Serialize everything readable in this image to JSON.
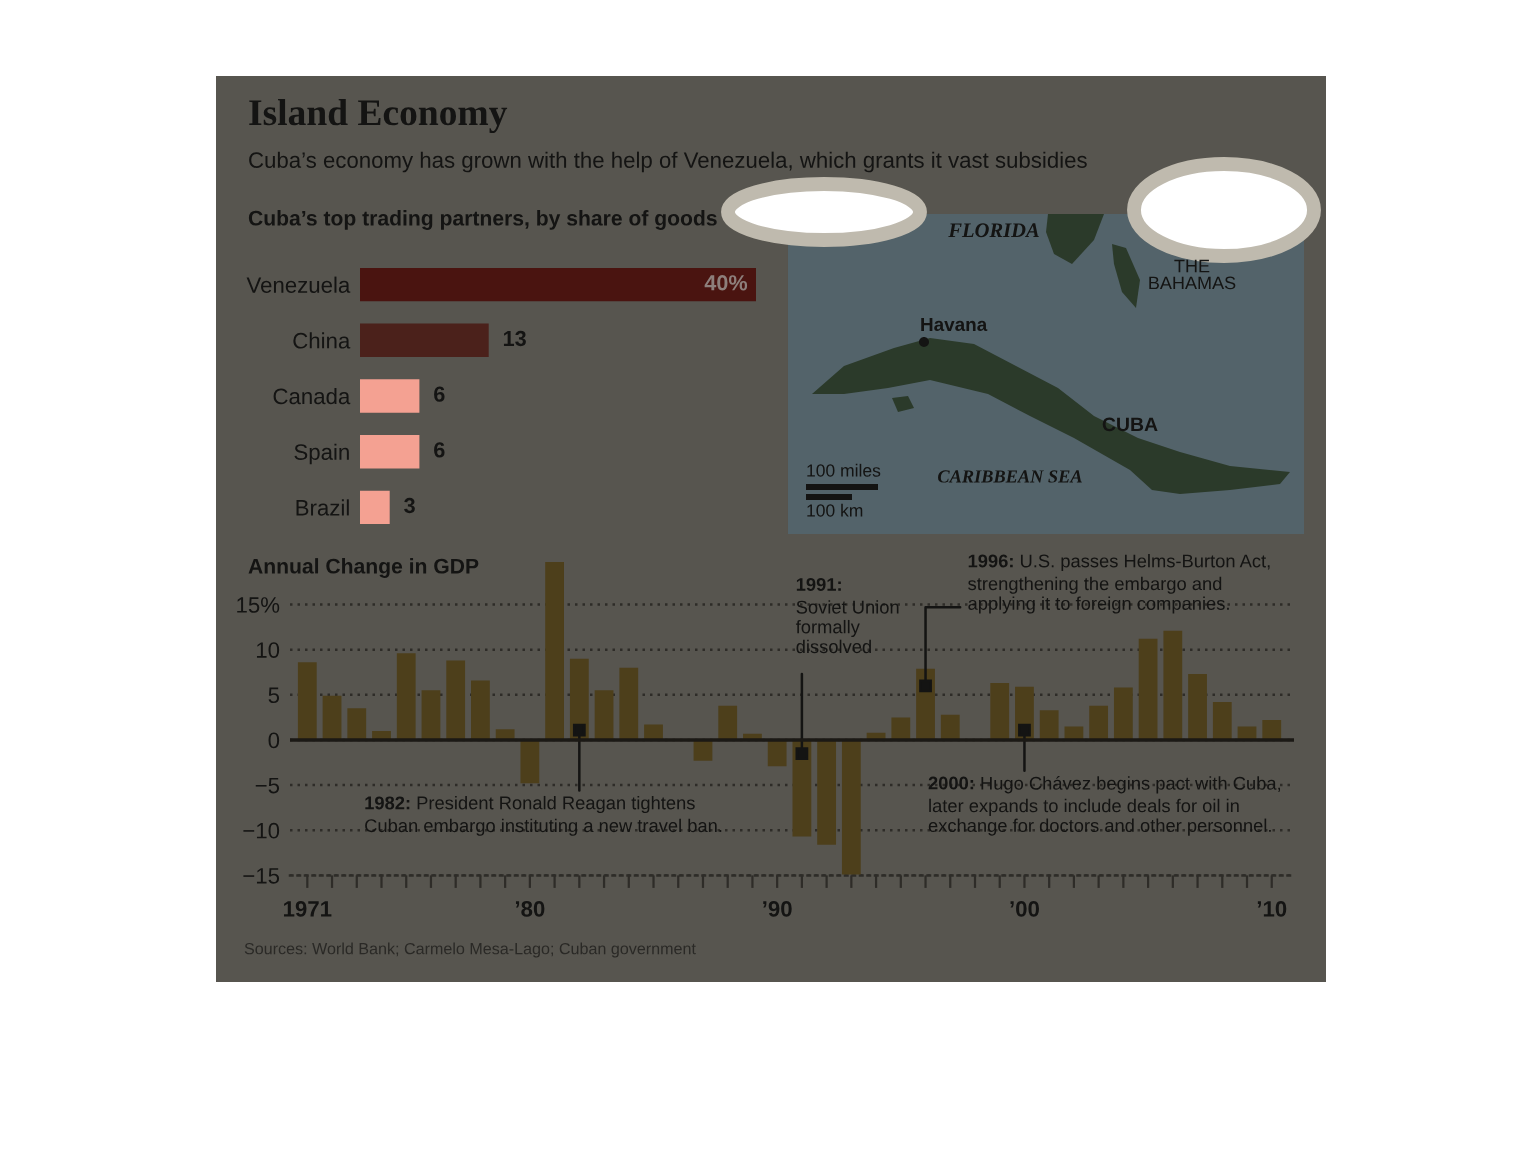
{
  "chart_data": [
    {
      "type": "other",
      "title": "Island Economy",
      "subtitle": "Cuba’s economy has grown with the help of Venezuela, which grants it vast subsidies"
    },
    {
      "type": "bar",
      "orientation": "horizontal",
      "title": "Cuba’s top trading partners, by share of goods",
      "categories": [
        "Venezuela",
        "China",
        "Canada",
        "Spain",
        "Brazil"
      ],
      "values": [
        40,
        13,
        6,
        6,
        3
      ],
      "colors": [
        "#4a1410",
        "#4b211b",
        "#f4a192",
        "#f4a192",
        "#f4a192"
      ],
      "value_labels": [
        "40%",
        "13",
        "6",
        "6",
        "3"
      ]
    },
    {
      "type": "other",
      "annotations": [
        "FLORIDA",
        "THE\nBAHAMAS",
        "Havana",
        "CUBA",
        "CARIBBEAN SEA",
        "100 miles",
        "100 km"
      ]
    },
    {
      "type": "bar",
      "title": "Annual Change in GDP",
      "x": [
        1971,
        1972,
        1973,
        1974,
        1975,
        1976,
        1977,
        1978,
        1979,
        1980,
        1981,
        1982,
        1983,
        1984,
        1985,
        1986,
        1987,
        1988,
        1989,
        1990,
        1991,
        1992,
        1993,
        1994,
        1995,
        1996,
        1997,
        1998,
        1999,
        2000,
        2001,
        2002,
        2003,
        2004,
        2005,
        2006,
        2007,
        2008,
        2009,
        2010
      ],
      "values": [
        8.6,
        4.9,
        3.5,
        1.0,
        9.6,
        5.5,
        8.8,
        6.6,
        1.2,
        -4.8,
        19.7,
        9.0,
        5.5,
        8.0,
        1.7,
        null,
        -2.3,
        3.8,
        0.7,
        -2.9,
        -10.7,
        -11.6,
        -14.9,
        0.8,
        2.5,
        7.9,
        2.8,
        null,
        6.3,
        5.9,
        3.3,
        1.5,
        3.8,
        5.8,
        11.2,
        12.1,
        7.3,
        4.2,
        1.5,
        2.2
      ],
      "color": "#4d3f1b",
      "xlim": [
        1970.3,
        2010.9
      ],
      "ylim": [
        -15,
        20
      ],
      "xticks": [
        {
          "value": 1971,
          "label": "1971"
        },
        {
          "value": 1972,
          "label": null
        },
        {
          "value": 1973,
          "label": null
        },
        {
          "value": 1974,
          "label": null
        },
        {
          "value": 1975,
          "label": null
        },
        {
          "value": 1976,
          "label": null
        },
        {
          "value": 1977,
          "label": null
        },
        {
          "value": 1978,
          "label": null
        },
        {
          "value": 1979,
          "label": null
        },
        {
          "value": 1980,
          "label": "’80"
        },
        {
          "value": 1981,
          "label": null
        },
        {
          "value": 1982,
          "label": null
        },
        {
          "value": 1983,
          "label": null
        },
        {
          "value": 1984,
          "label": null
        },
        {
          "value": 1985,
          "label": null
        },
        {
          "value": 1986,
          "label": null
        },
        {
          "value": 1987,
          "label": null
        },
        {
          "value": 1988,
          "label": null
        },
        {
          "value": 1989,
          "label": null
        },
        {
          "value": 1990,
          "label": "’90"
        },
        {
          "value": 1991,
          "label": null
        },
        {
          "value": 1992,
          "label": null
        },
        {
          "value": 1993,
          "label": null
        },
        {
          "value": 1994,
          "label": null
        },
        {
          "value": 1995,
          "label": null
        },
        {
          "value": 1996,
          "label": null
        },
        {
          "value": 1997,
          "label": null
        },
        {
          "value": 1998,
          "label": null
        },
        {
          "value": 1999,
          "label": null
        },
        {
          "value": 2000,
          "label": "’00"
        },
        {
          "value": 2001,
          "label": null
        },
        {
          "value": 2002,
          "label": null
        },
        {
          "value": 2003,
          "label": null
        },
        {
          "value": 2004,
          "label": null
        },
        {
          "value": 2005,
          "label": null
        },
        {
          "value": 2006,
          "label": null
        },
        {
          "value": 2007,
          "label": null
        },
        {
          "value": 2008,
          "label": null
        },
        {
          "value": 2009,
          "label": null
        },
        {
          "value": 2010,
          "label": "’10"
        }
      ],
      "yticks": [
        {
          "value": 15,
          "label": "15%"
        },
        10,
        5,
        0,
        {
          "value": -5,
          "label": "−5"
        },
        {
          "value": -10,
          "label": "−10"
        },
        {
          "value": -15,
          "label": "−15"
        }
      ],
      "grid": "y",
      "ref_lines": [
        {
          "axis": "y",
          "value": 0,
          "color": "#1b1915"
        }
      ],
      "annotations": [
        {
          "text": "1982: President Ronald Reagan tightens\nCuban embargo instituting a new travel ban.",
          "x": 1982,
          "y": 1.1
        },
        {
          "text": "1991:\nSoviet Union\nformally\ndissolved",
          "x": 1991,
          "y": -1.5
        },
        {
          "text": "1996: U.S. passes Helms-Burton Act,\nstrengthening the embargo and\napplying it to foreign companies.",
          "x": 1996,
          "y": 6.0
        },
        {
          "text": "2000: Hugo Chávez begins pact with Cuba,\nlater expands to include deals for oil in\nexchange for doctors and other personnel.",
          "x": 2000,
          "y": 1.1
        },
        "Sources: World Bank; Carmelo Mesa-Lago; Cuban government"
      ]
    }
  ]
}
